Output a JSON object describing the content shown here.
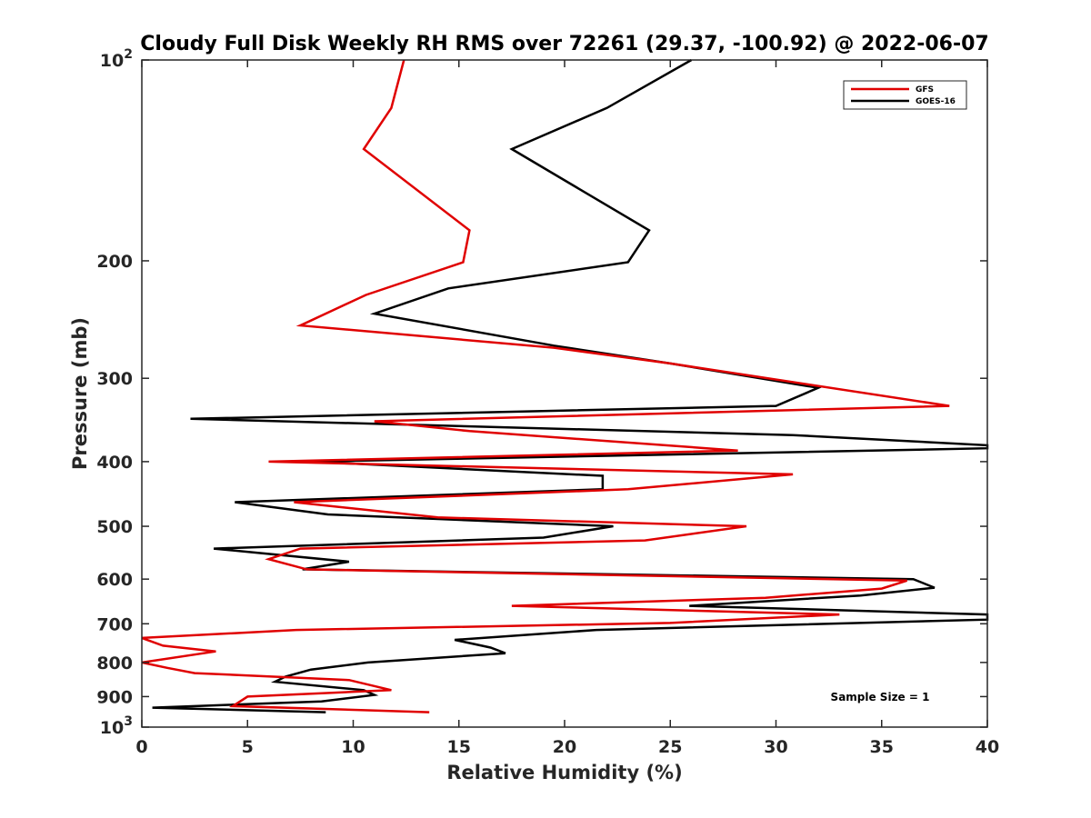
{
  "chart_data": {
    "type": "line",
    "title": "Cloudy Full Disk Weekly RH RMS over 72261 (29.37, -100.92) @ 2022-06-07",
    "xlabel": "Relative Humidity (%)",
    "ylabel": "Pressure (mb)",
    "xlim": [
      0,
      40
    ],
    "ylim": [
      100,
      1000
    ],
    "yscale": "log",
    "y_reversed": true,
    "grid": false,
    "legend_position": "top-right",
    "x_ticks": [
      "0",
      "5",
      "10",
      "15",
      "20",
      "25",
      "30",
      "35",
      "40"
    ],
    "y_ticks": [
      {
        "value": 100,
        "base": "10",
        "exp": "2"
      },
      {
        "value": 200,
        "label": "200"
      },
      {
        "value": 300,
        "label": "300"
      },
      {
        "value": 400,
        "label": "400"
      },
      {
        "value": 500,
        "label": "500"
      },
      {
        "value": 600,
        "label": "600"
      },
      {
        "value": 700,
        "label": "700"
      },
      {
        "value": 800,
        "label": "800"
      },
      {
        "value": 900,
        "label": "900"
      },
      {
        "value": 1000,
        "base": "10",
        "exp": "3"
      }
    ],
    "annotation": "Sample Size = 1",
    "series": [
      {
        "name": "GFS",
        "color": "#e00000",
        "points": [
          [
            12.4,
            100
          ],
          [
            11.8,
            118
          ],
          [
            10.5,
            136
          ],
          [
            15.5,
            180
          ],
          [
            15.2,
            201
          ],
          [
            10.6,
            225
          ],
          [
            7.5,
            250
          ],
          [
            19.5,
            270
          ],
          [
            25.0,
            285
          ],
          [
            38.2,
            330
          ],
          [
            11.0,
            348
          ],
          [
            15.5,
            360
          ],
          [
            28.2,
            385
          ],
          [
            6.0,
            400
          ],
          [
            30.8,
            418
          ],
          [
            23.0,
            440
          ],
          [
            7.2,
            460
          ],
          [
            14.0,
            485
          ],
          [
            28.6,
            500
          ],
          [
            23.8,
            525
          ],
          [
            7.5,
            540
          ],
          [
            6.0,
            560
          ],
          [
            7.8,
            580
          ],
          [
            36.2,
            603
          ],
          [
            35.0,
            620
          ],
          [
            29.5,
            640
          ],
          [
            17.5,
            658
          ],
          [
            33.0,
            678
          ],
          [
            25.0,
            698
          ],
          [
            7.3,
            715
          ],
          [
            0.0,
            735
          ],
          [
            1.0,
            755
          ],
          [
            3.5,
            770
          ],
          [
            0.0,
            800
          ],
          [
            1.2,
            815
          ],
          [
            2.5,
            830
          ],
          [
            9.8,
            850
          ],
          [
            11.8,
            880
          ],
          [
            5.0,
            900
          ],
          [
            4.3,
            930
          ],
          [
            13.6,
            950
          ]
        ]
      },
      {
        "name": "GOES-16",
        "color": "#000000",
        "points": [
          [
            26.0,
            100
          ],
          [
            22.0,
            118
          ],
          [
            17.5,
            136
          ],
          [
            24.0,
            180
          ],
          [
            23.0,
            201
          ],
          [
            14.5,
            220
          ],
          [
            11.0,
            240
          ],
          [
            19.5,
            268
          ],
          [
            25.0,
            285
          ],
          [
            32.0,
            310
          ],
          [
            30.0,
            330
          ],
          [
            2.3,
            345
          ],
          [
            30.8,
            365
          ],
          [
            40.0,
            378
          ],
          [
            40.0,
            382
          ],
          [
            8.0,
            400
          ],
          [
            21.8,
            420
          ],
          [
            21.8,
            440
          ],
          [
            4.4,
            460
          ],
          [
            8.8,
            480
          ],
          [
            22.3,
            500
          ],
          [
            19.0,
            520
          ],
          [
            3.4,
            540
          ],
          [
            9.8,
            565
          ],
          [
            7.6,
            580
          ],
          [
            36.5,
            600
          ],
          [
            37.5,
            618
          ],
          [
            34.0,
            635
          ],
          [
            25.9,
            658
          ],
          [
            40.0,
            678
          ],
          [
            40.0,
            690
          ],
          [
            21.5,
            715
          ],
          [
            14.8,
            740
          ],
          [
            16.5,
            760
          ],
          [
            17.2,
            775
          ],
          [
            10.7,
            800
          ],
          [
            8.0,
            820
          ],
          [
            6.8,
            840
          ],
          [
            6.3,
            855
          ],
          [
            10.5,
            880
          ],
          [
            11.0,
            895
          ],
          [
            8.5,
            915
          ],
          [
            0.5,
            935
          ],
          [
            8.7,
            950
          ]
        ]
      }
    ]
  }
}
